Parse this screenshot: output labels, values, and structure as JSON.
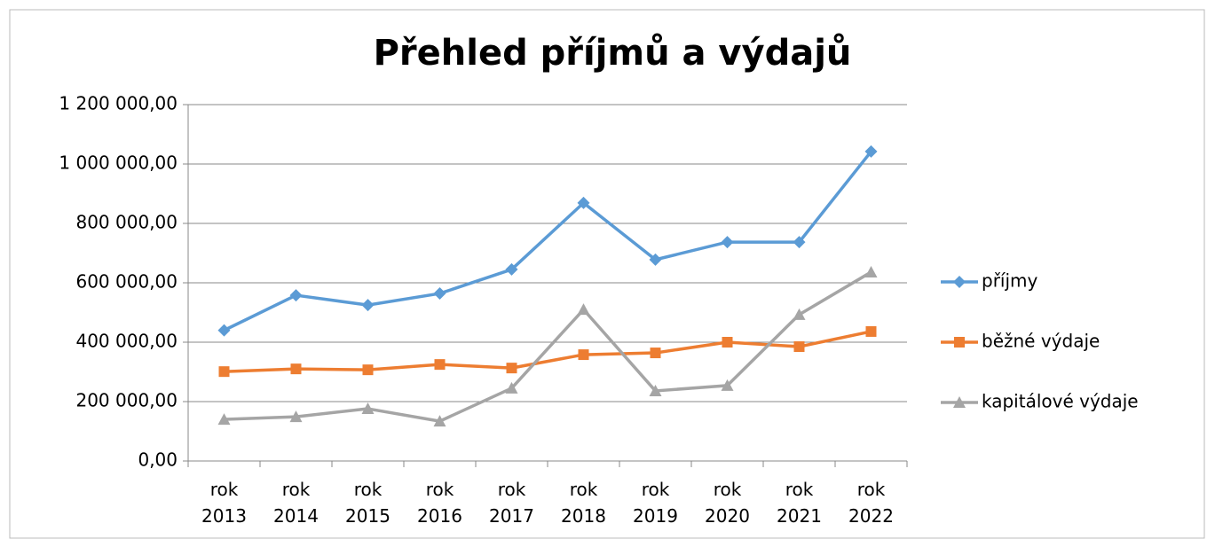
{
  "chart_data": {
    "type": "line",
    "title": "Přehled příjmů a výdajů",
    "categories": [
      "rok 2013",
      "rok 2014",
      "rok 2015",
      "rok 2016",
      "rok 2017",
      "rok 2018",
      "rok 2019",
      "rok 2020",
      "rok 2021",
      "rok 2022"
    ],
    "series": [
      {
        "name": "příjmy",
        "color": "#5b9bd5",
        "marker": "diamond",
        "values": [
          440000,
          558000,
          525000,
          564000,
          645000,
          869000,
          678000,
          737000,
          737000,
          1042000
        ]
      },
      {
        "name": "běžné výdaje",
        "color": "#ed7d31",
        "marker": "square",
        "values": [
          301000,
          310000,
          307000,
          325000,
          313000,
          358000,
          364000,
          400000,
          385000,
          436000
        ]
      },
      {
        "name": "kapitálové výdaje",
        "color": "#a5a5a5",
        "marker": "triangle",
        "values": [
          140000,
          149000,
          176000,
          134000,
          245000,
          510000,
          236000,
          254000,
          493000,
          636000
        ]
      }
    ],
    "ylim": [
      0,
      1200000
    ],
    "yticks": [
      {
        "value": 0,
        "label": "0,00"
      },
      {
        "value": 200000,
        "label": "200 000,00"
      },
      {
        "value": 400000,
        "label": "400 000,00"
      },
      {
        "value": 600000,
        "label": "600 000,00"
      },
      {
        "value": 800000,
        "label": "800 000,00"
      },
      {
        "value": 1000000,
        "label": "1 000 000,00"
      },
      {
        "value": 1200000,
        "label": "1 200 000,00"
      }
    ],
    "grid": true,
    "legend": "right"
  }
}
